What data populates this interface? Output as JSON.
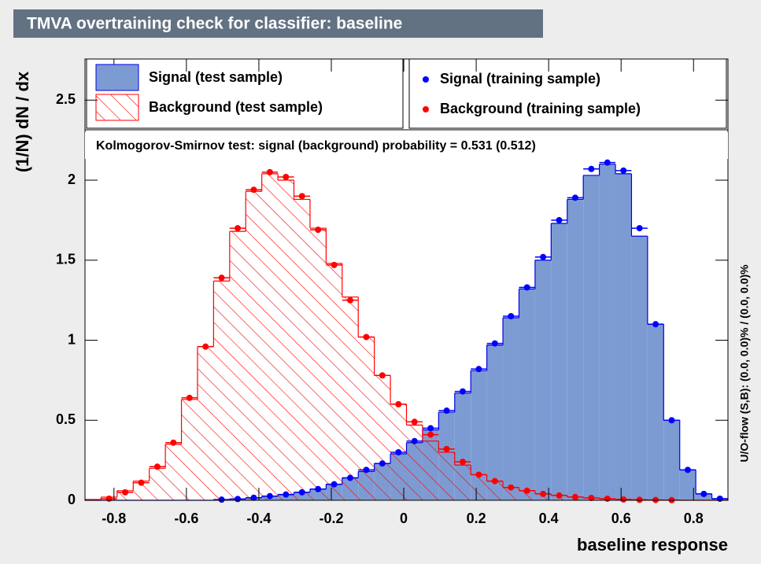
{
  "chart_data": {
    "type": "histogram",
    "title": "TMVA overtraining check for classifier: baseline",
    "xlabel": "baseline response",
    "ylabel": "(1/N) dN / dx",
    "annotations": [
      "Kolmogorov-Smirnov test: signal (background) probability = 0.531 (0.512)",
      "U/O-flow (S,B): (0.0, 0.0)% / (0.0, 0.0)%"
    ],
    "bins": [
      -0.88,
      -0.835625,
      -0.79125,
      -0.746875,
      -0.7025,
      -0.658125,
      -0.61375,
      -0.569375,
      -0.525,
      -0.480625,
      -0.43625,
      -0.391875,
      -0.3475,
      -0.303125,
      -0.25875,
      -0.214375,
      -0.17,
      -0.125625,
      -0.08125,
      -0.036875,
      0.0075,
      0.051875,
      0.09625,
      0.140625,
      0.185,
      0.229375,
      0.27375,
      0.318125,
      0.3625,
      0.406875,
      0.45125,
      0.495625,
      0.54,
      0.584375,
      0.62875,
      0.673125,
      0.7175,
      0.761875,
      0.80625,
      0.850625,
      0.895
    ],
    "series": [
      {
        "name": "Signal (test sample)",
        "style": "filled",
        "color": "#7d9bd3",
        "edgecolor": "#0000e6",
        "values": [
          0,
          0,
          0,
          0,
          0,
          0,
          0,
          0,
          0.003,
          0.008,
          0.015,
          0.025,
          0.035,
          0.05,
          0.07,
          0.1,
          0.14,
          0.18,
          0.23,
          0.29,
          0.36,
          0.44,
          0.55,
          0.67,
          0.81,
          0.97,
          1.14,
          1.32,
          1.5,
          1.73,
          1.88,
          2.03,
          2.1,
          2.04,
          1.65,
          1.1,
          0.5,
          0.19,
          0.04,
          0.01
        ]
      },
      {
        "name": "Background (test sample)",
        "style": "hatched",
        "color": "#ff0000",
        "edgecolor": "#ff0000",
        "values": [
          0.005,
          0.02,
          0.06,
          0.12,
          0.2,
          0.35,
          0.63,
          0.96,
          1.37,
          1.68,
          1.93,
          2.04,
          2.0,
          1.88,
          1.7,
          1.48,
          1.27,
          1.02,
          0.78,
          0.6,
          0.47,
          0.37,
          0.3,
          0.22,
          0.16,
          0.12,
          0.08,
          0.06,
          0.04,
          0.03,
          0.02,
          0.015,
          0.01,
          0.006,
          0.004,
          0.002,
          0.001,
          0,
          0,
          0
        ]
      },
      {
        "name": "Signal (training sample)",
        "style": "points",
        "color": "#0000ff",
        "values": [
          0,
          0,
          0,
          0,
          0,
          0,
          0,
          0,
          0.004,
          0.008,
          0.016,
          0.026,
          0.036,
          0.05,
          0.07,
          0.1,
          0.14,
          0.19,
          0.23,
          0.3,
          0.37,
          0.45,
          0.56,
          0.68,
          0.82,
          0.98,
          1.15,
          1.33,
          1.52,
          1.75,
          1.89,
          2.07,
          2.11,
          2.06,
          1.7,
          1.1,
          0.5,
          0.19,
          0.04,
          0.01
        ]
      },
      {
        "name": "Background (training sample)",
        "style": "points",
        "color": "#ff0000",
        "values": [
          0,
          0.01,
          0.05,
          0.11,
          0.21,
          0.36,
          0.64,
          0.96,
          1.39,
          1.7,
          1.94,
          2.05,
          2.02,
          1.9,
          1.69,
          1.47,
          1.25,
          1.02,
          0.78,
          0.6,
          0.49,
          0.41,
          0.32,
          0.24,
          0.16,
          0.12,
          0.08,
          0.06,
          0.04,
          0.03,
          0.02,
          0.015,
          0.01,
          0.005,
          0.003,
          0.002,
          0.001,
          0,
          0,
          0
        ]
      }
    ],
    "xlim": [
      -0.88,
      0.895
    ],
    "ylim": [
      0,
      2.757
    ],
    "xticks": [
      -0.8,
      -0.6,
      -0.4,
      -0.2,
      0,
      0.2,
      0.4,
      0.6,
      0.8
    ],
    "yticks": [
      0,
      0.5,
      1,
      1.5,
      2,
      2.5
    ]
  }
}
